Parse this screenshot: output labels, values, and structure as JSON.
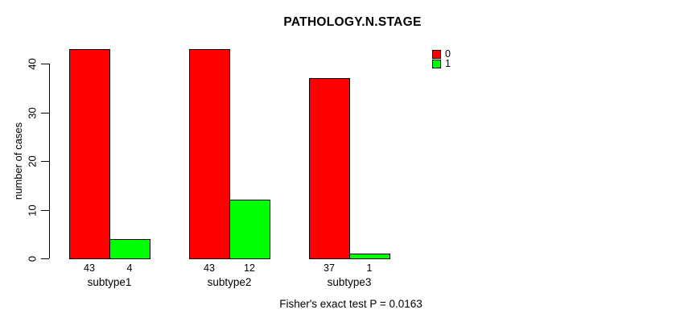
{
  "chart_data": {
    "type": "bar",
    "title": "PATHOLOGY.N.STAGE",
    "xlabel": "",
    "ylabel": "number of cases",
    "categories": [
      "subtype1",
      "subtype2",
      "subtype3"
    ],
    "series": [
      {
        "name": "0",
        "color": "#ff0000",
        "values": [
          43,
          43,
          37
        ]
      },
      {
        "name": "1",
        "color": "#00ff00",
        "values": [
          4,
          12,
          1
        ]
      }
    ],
    "y_ticks": [
      0,
      10,
      20,
      30,
      40
    ],
    "ylim": [
      0,
      43
    ],
    "grid": false,
    "legend_position": "top-right",
    "bar_outline_color": "#000000",
    "axis_color": "#000000",
    "background_color": "#ffffff",
    "annotation": "Fisher's exact test P = 0.0163"
  }
}
